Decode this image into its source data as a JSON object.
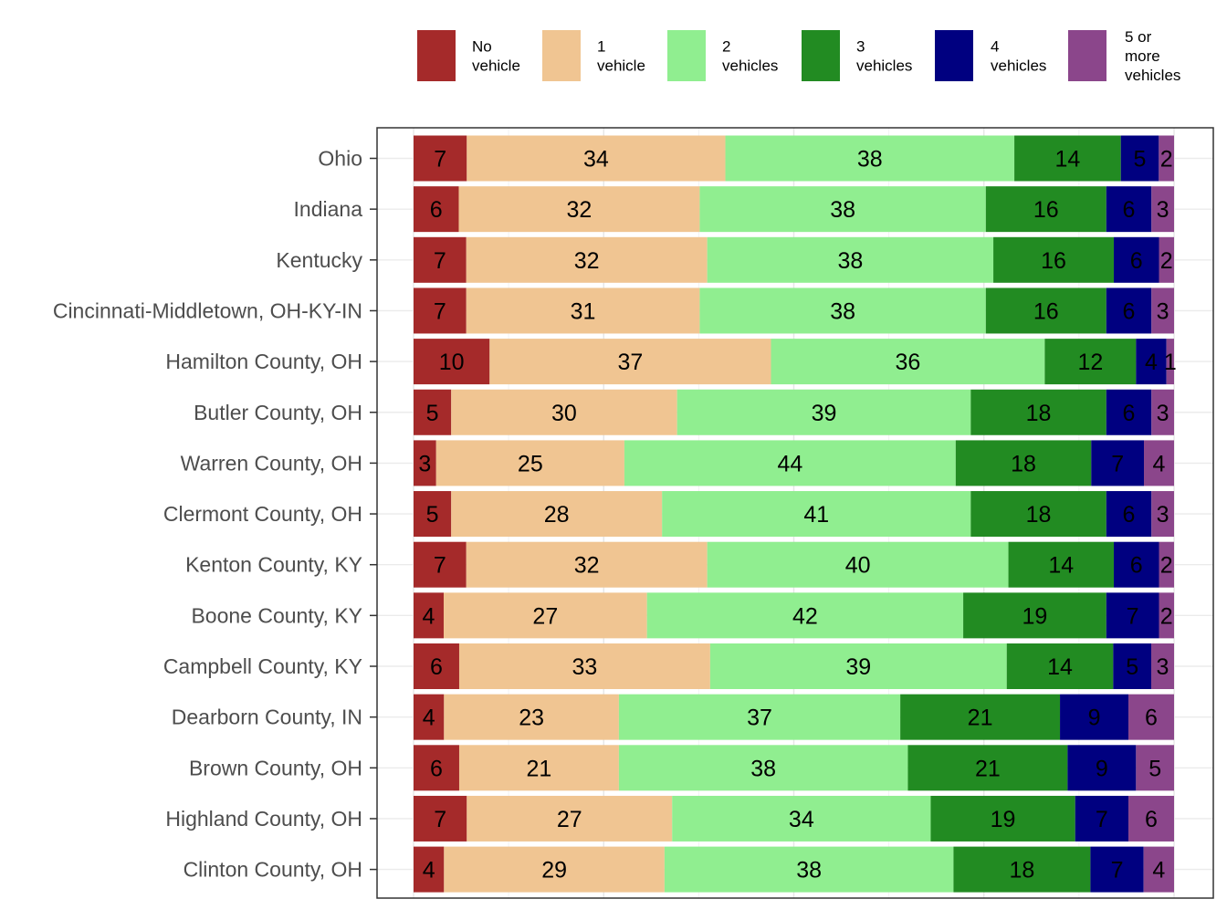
{
  "chart_data": {
    "type": "bar",
    "orientation": "horizontal",
    "stacked": true,
    "normalized": true,
    "categories": [
      "Ohio",
      "Indiana",
      "Kentucky",
      "Cincinnati-Middletown, OH-KY-IN",
      "Hamilton County, OH",
      "Butler County, OH",
      "Warren County, OH",
      "Clermont County, OH",
      "Kenton County, KY",
      "Boone County, KY",
      "Campbell County, KY",
      "Dearborn County, IN",
      "Brown County, OH",
      "Highland County, OH",
      "Clinton County, OH"
    ],
    "series": [
      {
        "name": "No vehicle",
        "color": "#a52a2a",
        "values": [
          7,
          6,
          7,
          7,
          10,
          5,
          3,
          5,
          7,
          4,
          6,
          4,
          6,
          7,
          4
        ]
      },
      {
        "name": "1 vehicle",
        "color": "#f0c592",
        "values": [
          34,
          32,
          32,
          31,
          37,
          30,
          25,
          28,
          32,
          27,
          33,
          23,
          21,
          27,
          29
        ]
      },
      {
        "name": "2 vehicles",
        "color": "#90ee90",
        "values": [
          38,
          38,
          38,
          38,
          36,
          39,
          44,
          41,
          40,
          42,
          39,
          37,
          38,
          34,
          38
        ]
      },
      {
        "name": "3 vehicles",
        "color": "#228b22",
        "values": [
          14,
          16,
          16,
          16,
          12,
          18,
          18,
          18,
          14,
          19,
          14,
          21,
          21,
          19,
          18
        ]
      },
      {
        "name": "4 vehicles",
        "color": "#000080",
        "values": [
          5,
          6,
          6,
          6,
          4,
          6,
          7,
          6,
          6,
          7,
          5,
          9,
          9,
          7,
          7
        ]
      },
      {
        "name": "5 or more vehicles",
        "color": "#8b468b",
        "values": [
          2,
          3,
          2,
          3,
          1,
          3,
          4,
          3,
          2,
          2,
          3,
          6,
          5,
          6,
          4
        ]
      }
    ],
    "legend": {
      "position": "top",
      "entries": [
        [
          "No",
          "vehicle"
        ],
        [
          "1",
          "vehicle"
        ],
        [
          "2",
          "vehicles"
        ],
        [
          "3",
          "vehicles"
        ],
        [
          "4",
          "vehicles"
        ],
        [
          "5 or",
          "more",
          "vehicles"
        ]
      ]
    },
    "title": "",
    "xlabel": "",
    "ylabel": "",
    "xlim": [
      0,
      100
    ],
    "x_axis_labels_shown": false,
    "grid": true,
    "data_labels": true
  }
}
